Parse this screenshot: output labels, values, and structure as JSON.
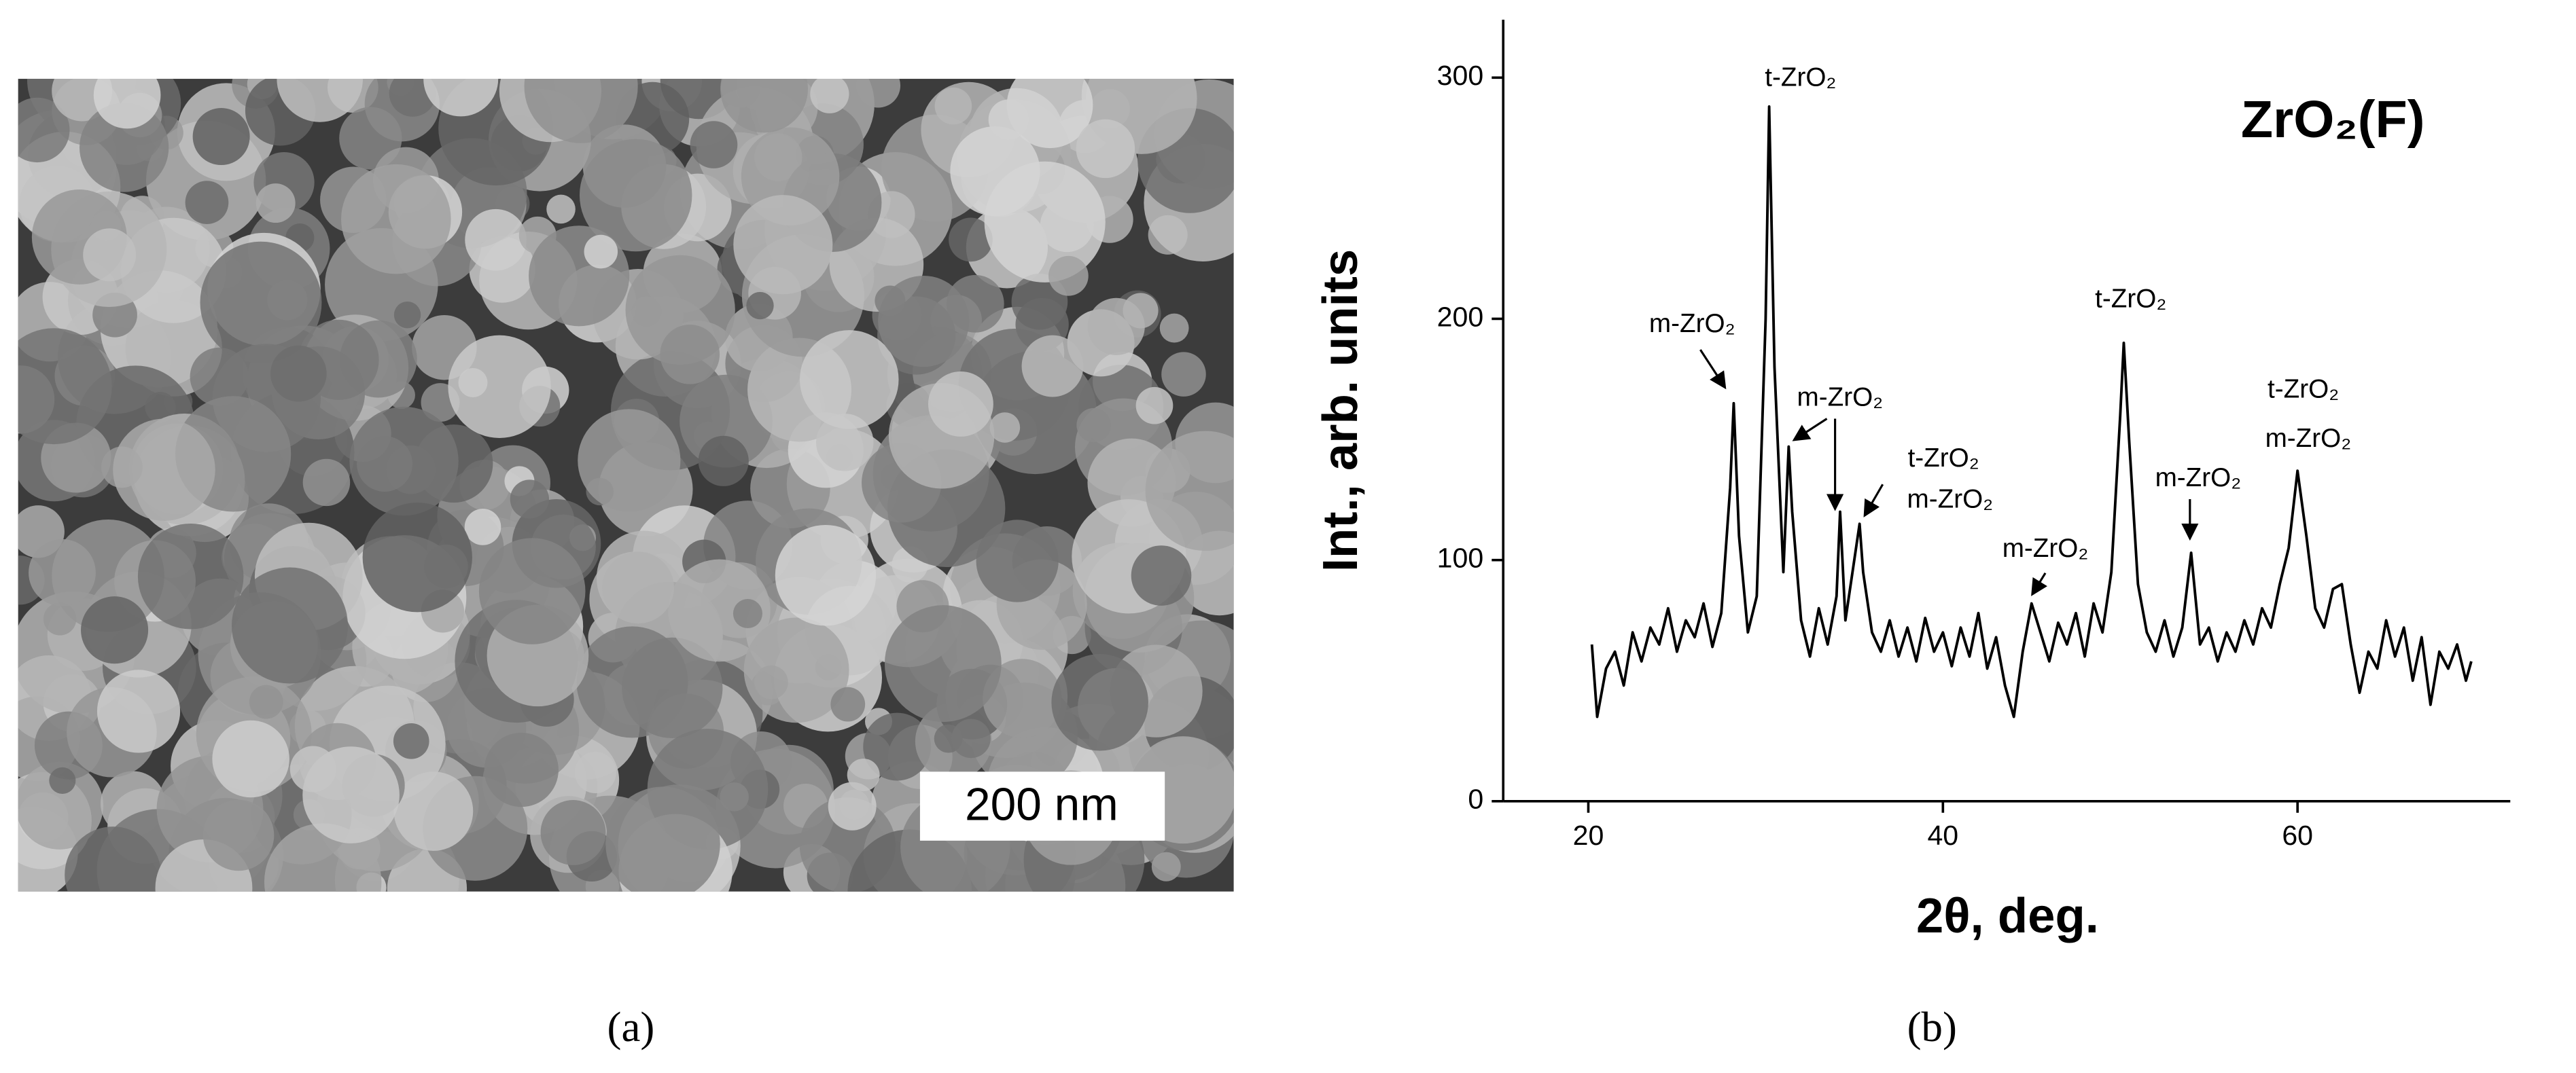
{
  "scale_bar": "200 nm",
  "captions": [
    "(a)",
    "(b)"
  ],
  "chart_data": {
    "type": "line",
    "title": "ZrO₂(F)",
    "x_label": "2θ, deg.",
    "y_label": "Int., arb. units",
    "xlim": [
      15.2,
      72
    ],
    "ylim": [
      0,
      324
    ],
    "xticks": [
      20,
      40,
      60
    ],
    "yticks": [
      0,
      100,
      200,
      300
    ],
    "annotations": [
      "t-ZrO₂",
      "m-ZrO₂",
      "m-ZrO₂",
      "t-ZrO₂",
      "m-ZrO₂",
      "m-ZrO₂",
      "t-ZrO₂",
      "m-ZrO₂",
      "t-ZrO₂",
      "m-ZrO₂"
    ],
    "x": [
      20.2,
      20.5,
      21,
      21.5,
      22,
      22.5,
      23,
      23.5,
      24,
      24.5,
      25,
      25.5,
      26,
      26.5,
      27,
      27.5,
      28,
      28.2,
      28.5,
      29,
      29.5,
      30,
      30.2,
      30.5,
      31,
      31.3,
      31.5,
      32,
      32.5,
      33,
      33.5,
      34,
      34.2,
      34.5,
      35,
      35.3,
      35.5,
      36,
      36.5,
      37,
      37.5,
      38,
      38.5,
      39,
      39.5,
      40,
      40.5,
      41,
      41.5,
      42,
      42.5,
      43,
      43.5,
      44,
      44.5,
      45,
      45.5,
      46,
      46.5,
      47,
      47.5,
      48,
      48.5,
      49,
      49.5,
      50,
      50.2,
      50.5,
      51,
      51.5,
      52,
      52.5,
      53,
      53.5,
      54,
      54.5,
      55,
      55.5,
      56,
      56.5,
      57,
      57.5,
      58,
      58.5,
      59,
      59.5,
      60,
      60.5,
      61,
      61.5,
      62,
      62.5,
      63,
      63.5,
      64,
      64.5,
      65,
      65.5,
      66,
      66.5,
      67,
      67.5,
      68,
      68.5,
      69,
      69.5,
      69.8
    ],
    "series": [
      {
        "color": "#000000",
        "values": [
          65,
          35,
          55,
          62,
          48,
          70,
          58,
          72,
          65,
          80,
          62,
          75,
          68,
          82,
          64,
          78,
          130,
          165,
          110,
          70,
          85,
          200,
          288,
          180,
          95,
          147,
          120,
          75,
          60,
          80,
          65,
          85,
          120,
          75,
          100,
          115,
          95,
          70,
          62,
          75,
          60,
          72,
          58,
          76,
          62,
          70,
          56,
          72,
          60,
          78,
          55,
          68,
          48,
          35,
          62,
          82,
          70,
          58,
          74,
          65,
          78,
          60,
          82,
          70,
          95,
          160,
          190,
          150,
          90,
          70,
          62,
          75,
          60,
          72,
          103,
          65,
          72,
          58,
          70,
          62,
          75,
          65,
          80,
          72,
          90,
          105,
          137,
          110,
          80,
          72,
          88,
          90,
          65,
          45,
          62,
          55,
          75,
          60,
          72,
          50,
          68,
          40,
          62,
          55,
          65,
          50,
          58
        ]
      }
    ]
  }
}
